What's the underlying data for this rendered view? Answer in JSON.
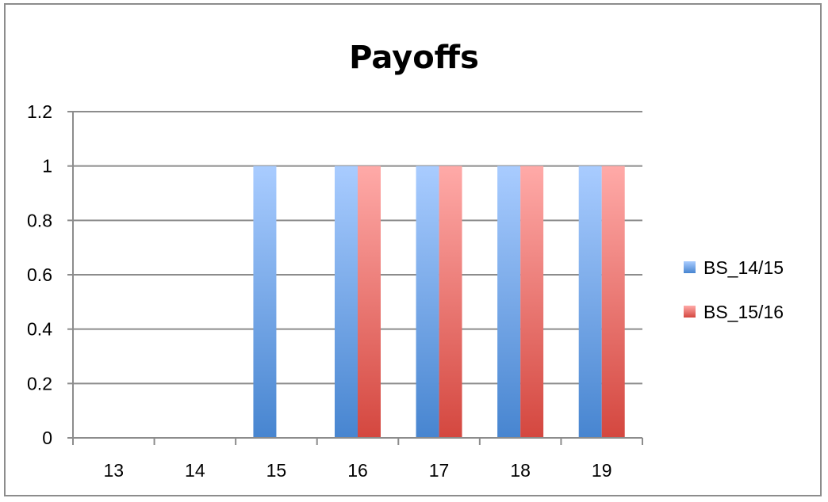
{
  "chart_data": {
    "type": "bar",
    "title": "Payoffs",
    "xlabel": "",
    "ylabel": "",
    "categories": [
      "13",
      "14",
      "15",
      "16",
      "17",
      "18",
      "19"
    ],
    "series": [
      {
        "name": "BS_14/15",
        "values": [
          0,
          0,
          1,
          1,
          1,
          1,
          1
        ],
        "color_top": "#a9ccff",
        "color_bottom": "#4785d0"
      },
      {
        "name": "BS_15/16",
        "values": [
          0,
          0,
          0,
          1,
          1,
          1,
          1
        ],
        "color_top": "#ffaaa8",
        "color_bottom": "#d4473f"
      }
    ],
    "ylim": [
      0,
      1.2
    ],
    "yticks": [
      0,
      0.2,
      0.4,
      0.6,
      0.8,
      1,
      1.2
    ],
    "ytick_labels": [
      "0",
      "0.2",
      "0.4",
      "0.6",
      "0.8",
      "1",
      "1.2"
    ],
    "grid": true,
    "legend": "right"
  }
}
